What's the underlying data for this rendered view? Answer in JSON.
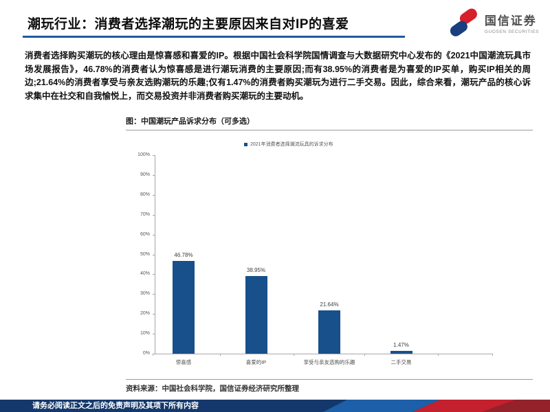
{
  "header": {
    "title": "潮玩行业：消费者选择潮玩的主要原因来自对IP的喜爱",
    "brand": "国信证券",
    "brand_en": "GUOSEN SECURITIES"
  },
  "body": {
    "lead": "消费者选择购买潮玩的核心理由是惊喜感和喜爱的IP。",
    "rest": "根据中国社会科学院国情调查与大数据研究中心发布的《2021中国潮流玩具市场发展报告》，46.78%的消费者认为惊喜感是进行潮玩消费的主要原因;而有38.95%的消费者是为喜爱的IP买单，购买IP相关的周边;21.64%的消费者享受与亲友选购潮玩的乐趣;仅有1.47%的消费者购买潮玩为进行二手交易。因此，综合来看，潮玩产品的核心诉求集中在社交和自我愉悦上，而交易投资并非消费者购买潮玩的主要动机。"
  },
  "chart": {
    "caption": "图：中国潮玩产品诉求分布（可多选）",
    "source": "资料来源：中国社会科学院，国信证券经济研究所整理"
  },
  "chart_data": {
    "type": "bar",
    "title": "2021年消费者选择潮流玩具的诉求分布",
    "categories": [
      "惊喜感",
      "喜爱的IP",
      "享受与亲友选购的乐趣",
      "二手交易"
    ],
    "values": [
      46.78,
      38.95,
      21.64,
      1.47
    ],
    "value_labels": [
      "46.78%",
      "38.95%",
      "21.64%",
      "1.47%"
    ],
    "xlabel": "",
    "ylabel": "",
    "ylim": [
      0,
      100
    ],
    "ytick_labels": [
      "0%",
      "10%",
      "20%",
      "30%",
      "40%",
      "50%",
      "60%",
      "70%",
      "80%",
      "90%",
      "100%"
    ],
    "legend_position": "top",
    "grid": false,
    "bar_color": "#17508a"
  },
  "footer": {
    "disclaimer": "请务必阅读正文之后的免责声明及其项下所有内容"
  },
  "colors": {
    "accent_blue": "#1e5a9e",
    "bar": "#17508a",
    "band_navy": "#14386b",
    "band_blue": "#1d5fa8",
    "band_red": "#c4202e",
    "band_dark_red": "#93222a",
    "logo_red": "#d71f2b",
    "logo_blue": "#1b3f7e"
  }
}
